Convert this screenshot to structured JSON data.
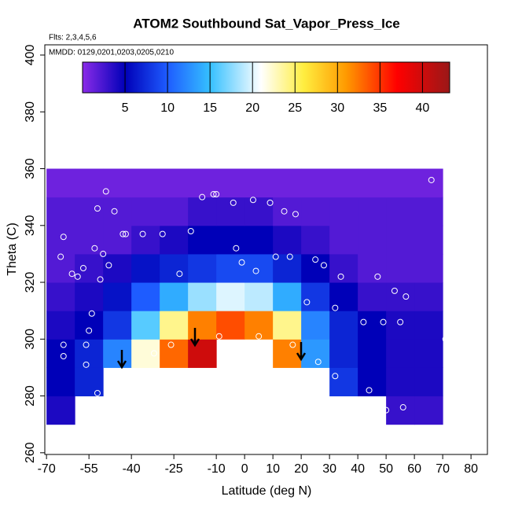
{
  "chart_data": {
    "type": "heatmap",
    "title": "ATOM2 Southbound Sat_Vapor_Press_Ice",
    "annotations": [
      "Flts: 2,3,4,5,6",
      "MMDD: 0129,0201,0203,0205,0210"
    ],
    "x_label": "Latitude (deg N)",
    "y_label": "Theta (C)",
    "x": [
      -65,
      -55,
      -45,
      -35,
      -25,
      -15,
      -5,
      5,
      15,
      25,
      35,
      45,
      55,
      65
    ],
    "y": [
      275,
      285,
      295,
      305,
      315,
      325,
      335,
      345,
      355
    ],
    "z": [
      [
        4,
        null,
        null,
        null,
        null,
        null,
        null,
        null,
        null,
        null,
        null,
        null,
        3,
        3
      ],
      [
        5,
        7,
        null,
        null,
        null,
        null,
        null,
        null,
        null,
        null,
        8,
        5,
        4,
        4
      ],
      [
        5,
        7,
        12,
        22,
        33,
        40,
        null,
        null,
        32,
        13,
        7,
        5,
        4,
        4
      ],
      [
        4,
        5,
        8,
        16,
        24,
        32,
        34,
        32,
        24,
        12,
        7,
        5,
        4,
        4
      ],
      [
        3,
        4,
        6,
        10,
        14,
        18,
        20,
        19,
        14,
        8,
        5,
        3,
        3,
        3
      ],
      [
        2,
        3,
        4,
        6,
        7,
        8,
        9,
        9,
        7,
        5,
        3,
        2,
        2,
        2
      ],
      [
        2,
        2,
        2,
        3,
        4,
        5,
        5,
        5,
        4,
        3,
        2,
        2,
        2,
        2
      ],
      [
        2,
        2,
        2,
        2,
        2,
        3,
        3,
        3,
        2,
        2,
        2,
        2,
        2,
        2
      ],
      [
        1,
        1,
        1,
        1,
        1,
        1,
        1,
        1,
        1,
        1,
        1,
        1,
        1,
        1
      ]
    ],
    "xlim": [
      -70.6,
      85.8
    ],
    "ylim": [
      259.4,
      403.6
    ],
    "xticks": [
      -70,
      -55,
      -40,
      -25,
      -10,
      0,
      10,
      20,
      30,
      40,
      50,
      60,
      70,
      80
    ],
    "yticks": [
      260,
      280,
      300,
      320,
      340,
      360,
      380,
      400
    ],
    "colorbar_lim": [
      0,
      43.2
    ],
    "colorbar_ticks": [
      5,
      10,
      15,
      20,
      25,
      30,
      35,
      40
    ],
    "colorscale": [
      [
        0,
        "#8a2be8"
      ],
      [
        5,
        "#0000b8"
      ],
      [
        10,
        "#1e5cff"
      ],
      [
        15,
        "#35c0ff"
      ],
      [
        21,
        "#ffffff"
      ],
      [
        26,
        "#ffee40"
      ],
      [
        31,
        "#ff9a00"
      ],
      [
        37,
        "#ff0000"
      ],
      [
        43.2,
        "#9a1818"
      ]
    ],
    "points": {
      "x": [
        -65,
        -64,
        -61,
        -59,
        -57,
        -53,
        -52,
        -49,
        -46,
        -48,
        -43,
        -42,
        -36,
        -29,
        -23,
        -19,
        -15,
        -11,
        -10,
        -4,
        3,
        9,
        18,
        14,
        -3,
        -1,
        4,
        11,
        16,
        25,
        28,
        34,
        47,
        53,
        57,
        66,
        71,
        55,
        49,
        42,
        32,
        22,
        -50,
        -51,
        -54,
        -55,
        -56,
        -64,
        -64,
        -56,
        -52,
        44,
        50,
        56,
        32,
        5,
        -9,
        -26,
        -32,
        17,
        26
      ],
      "y": [
        329,
        336,
        323,
        322,
        325,
        332,
        346,
        352,
        345,
        326,
        337,
        337,
        337,
        337,
        323,
        338,
        350,
        351,
        351,
        348,
        349,
        348,
        344,
        345,
        332,
        327,
        324,
        329,
        329,
        328,
        326,
        322,
        322,
        317,
        315,
        356,
        300,
        306,
        306,
        306,
        311,
        313,
        330,
        321,
        309,
        303,
        298,
        298,
        294,
        291,
        281,
        282,
        275,
        276,
        287,
        301,
        301,
        298,
        295,
        298,
        292
      ],
      "color": "#ffffff"
    }
  }
}
